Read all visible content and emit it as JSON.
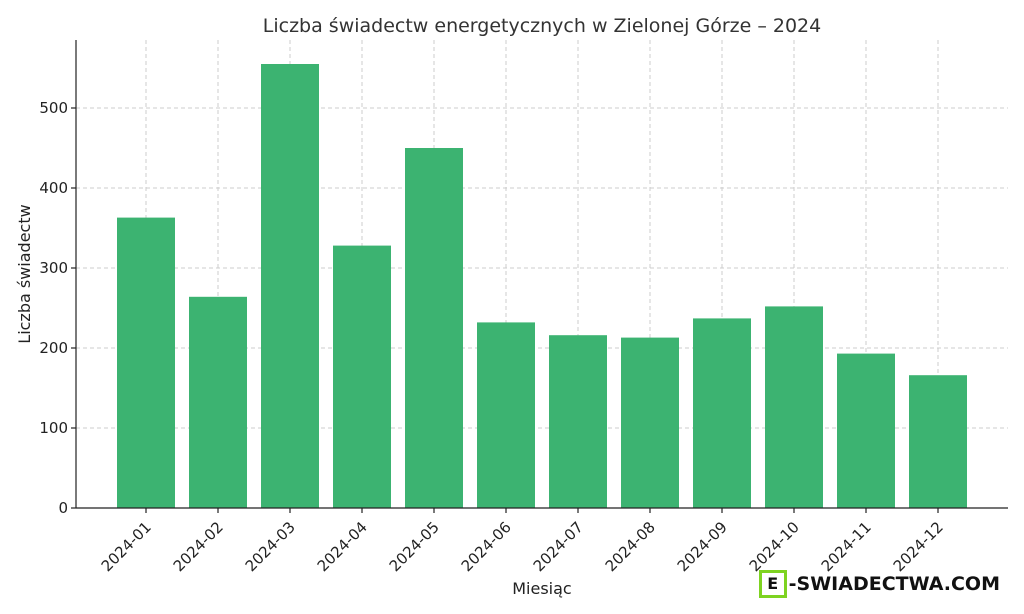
{
  "chart_data": {
    "type": "bar",
    "title": "Liczba świadectw energetycznych w Zielonej Górze – 2024",
    "xlabel": "Miesiąc",
    "ylabel": "Liczba świadectw",
    "categories": [
      "2024-01",
      "2024-02",
      "2024-03",
      "2024-04",
      "2024-05",
      "2024-06",
      "2024-07",
      "2024-08",
      "2024-09",
      "2024-10",
      "2024-11",
      "2024-12"
    ],
    "values": [
      363,
      264,
      555,
      328,
      450,
      232,
      216,
      213,
      237,
      252,
      193,
      166
    ],
    "ylim": [
      0,
      585
    ],
    "yticks": [
      0,
      100,
      200,
      300,
      400,
      500
    ],
    "grid": true,
    "bar_color": "#3cb371"
  },
  "logo": {
    "mark": "E",
    "text": "-SWIADECTWA.COM"
  }
}
